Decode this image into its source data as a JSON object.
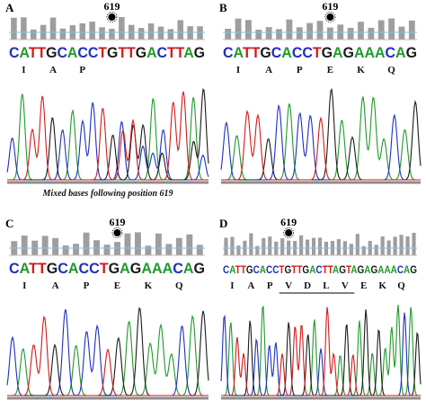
{
  "colors": {
    "A": "#1e9a2a",
    "C": "#1f2fbf",
    "G": "#1a1a1a",
    "T": "#d11a1a",
    "quality": "#9e9e9e",
    "baseline": "#8c8c8c"
  },
  "panels": [
    {
      "label": "A",
      "position": "619",
      "sequence": "CATTGCACCTGTTGACTTAG",
      "amino_acids": [
        "I",
        "A",
        "P"
      ],
      "caption": "Mixed bases following position 619",
      "marker_index": 10,
      "underline": null,
      "small": false
    },
    {
      "label": "B",
      "position": "619",
      "sequence": "CATTGCACCTGAGAAACAG",
      "amino_acids": [
        "I",
        "A",
        "P",
        "E",
        "K",
        "Q"
      ],
      "caption": "",
      "marker_index": 10,
      "underline": null,
      "small": false
    },
    {
      "label": "C",
      "position": "619",
      "sequence": "CATTGCACCTGAGAAACAG",
      "amino_acids": [
        "I",
        "A",
        "P",
        "E",
        "K",
        "Q"
      ],
      "caption": "",
      "marker_index": 10,
      "underline": null,
      "small": false
    },
    {
      "label": "D",
      "position": "619",
      "sequence": "CATTGCACCTGTTGACTTAGTAGAGAAACAG",
      "amino_acids": [
        "I",
        "A",
        "P",
        "V",
        "D",
        "L",
        "V",
        "E",
        "K",
        "Q"
      ],
      "caption": "",
      "marker_index": 10,
      "underline": [
        3,
        6
      ],
      "small": true
    }
  ]
}
